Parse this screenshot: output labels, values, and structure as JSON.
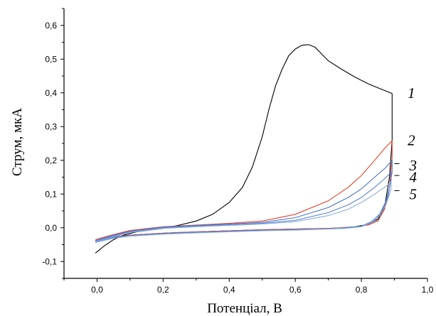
{
  "chart_data": {
    "type": "line",
    "xlabel": "Потенціал, В",
    "ylabel": "Струм, мкА",
    "xlim": [
      -0.1,
      1.0
    ],
    "ylim": [
      -0.15,
      0.65
    ],
    "xticks": [
      0.0,
      0.2,
      0.4,
      0.6,
      0.8,
      1.0
    ],
    "xtick_labels": [
      "0,0",
      "0,2",
      "0,4",
      "0,6",
      "0,8",
      "1,0"
    ],
    "yticks": [
      -0.1,
      0.0,
      0.1,
      0.2,
      0.3,
      0.4,
      0.5,
      0.6
    ],
    "ytick_labels": [
      "-0,1",
      "0,0",
      "0,1",
      "0,2",
      "0,3",
      "0,4",
      "0,5",
      "0,6"
    ],
    "grid": false,
    "series": [
      {
        "name": "1",
        "color": "#000000",
        "x": [
          -0.005,
          0.02,
          0.05,
          0.08,
          0.12,
          0.2,
          0.25,
          0.3,
          0.35,
          0.4,
          0.44,
          0.47,
          0.5,
          0.52,
          0.54,
          0.56,
          0.58,
          0.6,
          0.62,
          0.64,
          0.66,
          0.68,
          0.7,
          0.74,
          0.78,
          0.82,
          0.85,
          0.88,
          0.893,
          0.893,
          0.885,
          0.87,
          0.85,
          0.82,
          0.78,
          0.74,
          0.7,
          0.6,
          0.5,
          0.4,
          0.3,
          0.2,
          0.1,
          0.05,
          0.02,
          -0.005
        ],
        "y": [
          -0.075,
          -0.055,
          -0.035,
          -0.022,
          -0.012,
          -0.002,
          0.008,
          0.02,
          0.04,
          0.075,
          0.12,
          0.18,
          0.27,
          0.35,
          0.42,
          0.47,
          0.51,
          0.53,
          0.541,
          0.543,
          0.535,
          0.515,
          0.495,
          0.47,
          0.447,
          0.427,
          0.415,
          0.403,
          0.398,
          0.26,
          0.15,
          0.06,
          0.025,
          0.01,
          0.003,
          0.0,
          -0.002,
          -0.004,
          -0.006,
          -0.009,
          -0.012,
          -0.016,
          -0.022,
          -0.027,
          -0.033,
          -0.04
        ]
      },
      {
        "name": "2",
        "color": "#e8402a",
        "x": [
          -0.005,
          0.05,
          0.1,
          0.2,
          0.3,
          0.4,
          0.5,
          0.6,
          0.7,
          0.76,
          0.8,
          0.84,
          0.87,
          0.893,
          0.893,
          0.885,
          0.87,
          0.85,
          0.82,
          0.78,
          0.7,
          0.6,
          0.5,
          0.4,
          0.3,
          0.2,
          0.1,
          0.05,
          -0.005
        ],
        "y": [
          -0.035,
          -0.02,
          -0.008,
          0.003,
          0.008,
          0.013,
          0.02,
          0.04,
          0.08,
          0.12,
          0.155,
          0.2,
          0.235,
          0.258,
          0.21,
          0.12,
          0.055,
          0.02,
          0.008,
          0.002,
          -0.002,
          -0.004,
          -0.006,
          -0.009,
          -0.012,
          -0.016,
          -0.022,
          -0.027,
          -0.038
        ]
      },
      {
        "name": "3",
        "color": "#4a74c8",
        "x": [
          -0.005,
          0.05,
          0.1,
          0.2,
          0.3,
          0.4,
          0.5,
          0.6,
          0.7,
          0.76,
          0.8,
          0.84,
          0.87,
          0.893,
          0.893,
          0.88,
          0.86,
          0.84,
          0.8,
          0.75,
          0.7,
          0.6,
          0.5,
          0.4,
          0.3,
          0.2,
          0.1,
          0.05,
          -0.005
        ],
        "y": [
          -0.038,
          -0.022,
          -0.01,
          0.002,
          0.007,
          0.011,
          0.016,
          0.03,
          0.06,
          0.09,
          0.115,
          0.15,
          0.175,
          0.2,
          0.165,
          0.09,
          0.045,
          0.02,
          0.005,
          0.0,
          -0.003,
          -0.005,
          -0.007,
          -0.01,
          -0.013,
          -0.017,
          -0.023,
          -0.028,
          -0.04
        ]
      },
      {
        "name": "4",
        "color": "#5c86d0",
        "x": [
          -0.005,
          0.05,
          0.1,
          0.2,
          0.3,
          0.4,
          0.5,
          0.6,
          0.7,
          0.76,
          0.8,
          0.84,
          0.87,
          0.89,
          0.89,
          0.875,
          0.855,
          0.83,
          0.8,
          0.75,
          0.7,
          0.6,
          0.5,
          0.4,
          0.3,
          0.2,
          0.1,
          0.05,
          -0.005
        ],
        "y": [
          -0.04,
          -0.024,
          -0.012,
          0.0,
          0.005,
          0.009,
          0.013,
          0.022,
          0.045,
          0.068,
          0.09,
          0.12,
          0.145,
          0.165,
          0.14,
          0.08,
          0.04,
          0.018,
          0.005,
          0.0,
          -0.003,
          -0.006,
          -0.008,
          -0.011,
          -0.014,
          -0.018,
          -0.024,
          -0.03,
          -0.042
        ]
      },
      {
        "name": "5",
        "color": "#8aaee0",
        "x": [
          -0.005,
          0.05,
          0.1,
          0.2,
          0.3,
          0.4,
          0.5,
          0.6,
          0.7,
          0.76,
          0.8,
          0.84,
          0.87,
          0.89,
          0.89,
          0.875,
          0.855,
          0.83,
          0.8,
          0.75,
          0.7,
          0.6,
          0.5,
          0.4,
          0.3,
          0.2,
          0.1,
          0.05,
          -0.005
        ],
        "y": [
          -0.042,
          -0.026,
          -0.014,
          -0.002,
          0.003,
          0.007,
          0.011,
          0.018,
          0.036,
          0.055,
          0.075,
          0.1,
          0.12,
          0.135,
          0.115,
          0.07,
          0.035,
          0.015,
          0.003,
          -0.002,
          -0.004,
          -0.007,
          -0.009,
          -0.012,
          -0.015,
          -0.019,
          -0.025,
          -0.031,
          -0.044
        ]
      }
    ],
    "curve_labels": [
      {
        "text": "1",
        "x": 0.94,
        "y": 0.4
      },
      {
        "text": "2",
        "x": 0.94,
        "y": 0.26
      },
      {
        "text": "3",
        "x": 0.945,
        "y": 0.185
      },
      {
        "text": "4",
        "x": 0.945,
        "y": 0.15
      },
      {
        "text": "5",
        "x": 0.945,
        "y": 0.1
      }
    ],
    "label_leaders": [
      {
        "x1": 0.9,
        "x2": 0.915,
        "y": 0.19
      },
      {
        "x1": 0.9,
        "x2": 0.915,
        "y": 0.155
      },
      {
        "x1": 0.9,
        "x2": 0.915,
        "y": 0.11
      }
    ]
  }
}
